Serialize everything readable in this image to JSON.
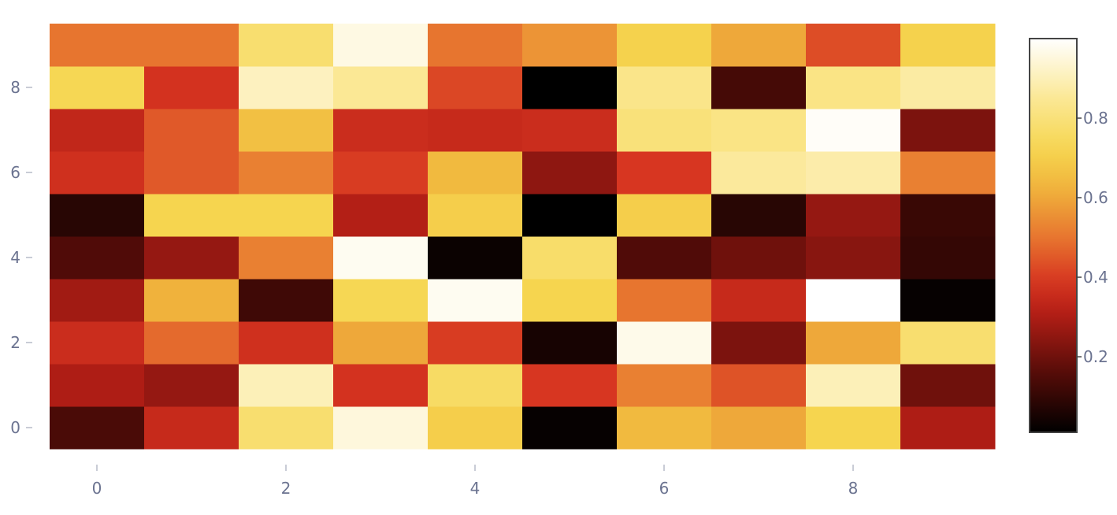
{
  "chart_data": {
    "type": "heatmap",
    "x": [
      0,
      1,
      2,
      3,
      4,
      5,
      6,
      7,
      8,
      9
    ],
    "y": [
      0,
      1,
      2,
      3,
      4,
      5,
      6,
      7,
      8,
      9
    ],
    "xlim": [
      -0.5,
      9.5
    ],
    "ylim": [
      -0.5,
      9.5
    ],
    "x_ticks": [
      0,
      2,
      4,
      6,
      8
    ],
    "y_ticks": [
      0,
      2,
      4,
      6,
      8
    ],
    "x_tick_labels": [
      "0",
      "2",
      "4",
      "6",
      "8"
    ],
    "y_tick_labels": [
      "0",
      "2",
      "4",
      "6",
      "8"
    ],
    "z": [
      [
        0.14,
        0.35,
        0.78,
        0.95,
        0.7,
        0.02,
        0.64,
        0.6,
        0.72,
        0.3
      ],
      [
        0.3,
        0.26,
        0.9,
        0.38,
        0.76,
        0.39,
        0.52,
        0.44,
        0.9,
        0.2
      ],
      [
        0.36,
        0.48,
        0.37,
        0.6,
        0.4,
        0.05,
        0.97,
        0.22,
        0.6,
        0.78
      ],
      [
        0.28,
        0.62,
        0.12,
        0.73,
        0.98,
        0.72,
        0.5,
        0.35,
        1.0,
        0.02
      ],
      [
        0.15,
        0.26,
        0.52,
        0.98,
        0.03,
        0.77,
        0.15,
        0.2,
        0.24,
        0.1
      ],
      [
        0.08,
        0.72,
        0.72,
        0.31,
        0.7,
        0.01,
        0.7,
        0.08,
        0.26,
        0.11
      ],
      [
        0.37,
        0.45,
        0.52,
        0.4,
        0.64,
        0.25,
        0.39,
        0.86,
        0.88,
        0.52
      ],
      [
        0.34,
        0.45,
        0.66,
        0.36,
        0.35,
        0.36,
        0.8,
        0.82,
        0.99,
        0.22
      ],
      [
        0.73,
        0.38,
        0.91,
        0.85,
        0.42,
        0.0,
        0.83,
        0.13,
        0.82,
        0.87
      ],
      [
        0.5,
        0.5,
        0.78,
        0.96,
        0.5,
        0.56,
        0.71,
        0.6,
        0.43,
        0.71
      ]
    ],
    "colorscale": "Hot",
    "colorbar": {
      "range": [
        0.01,
        1.0
      ],
      "ticks": [
        0.2,
        0.4,
        0.6,
        0.8
      ],
      "tick_labels": [
        "0.2",
        "0.4",
        "0.6",
        "0.8"
      ],
      "placement": "right"
    },
    "grid": false,
    "title": "",
    "xlabel": "",
    "ylabel": ""
  }
}
